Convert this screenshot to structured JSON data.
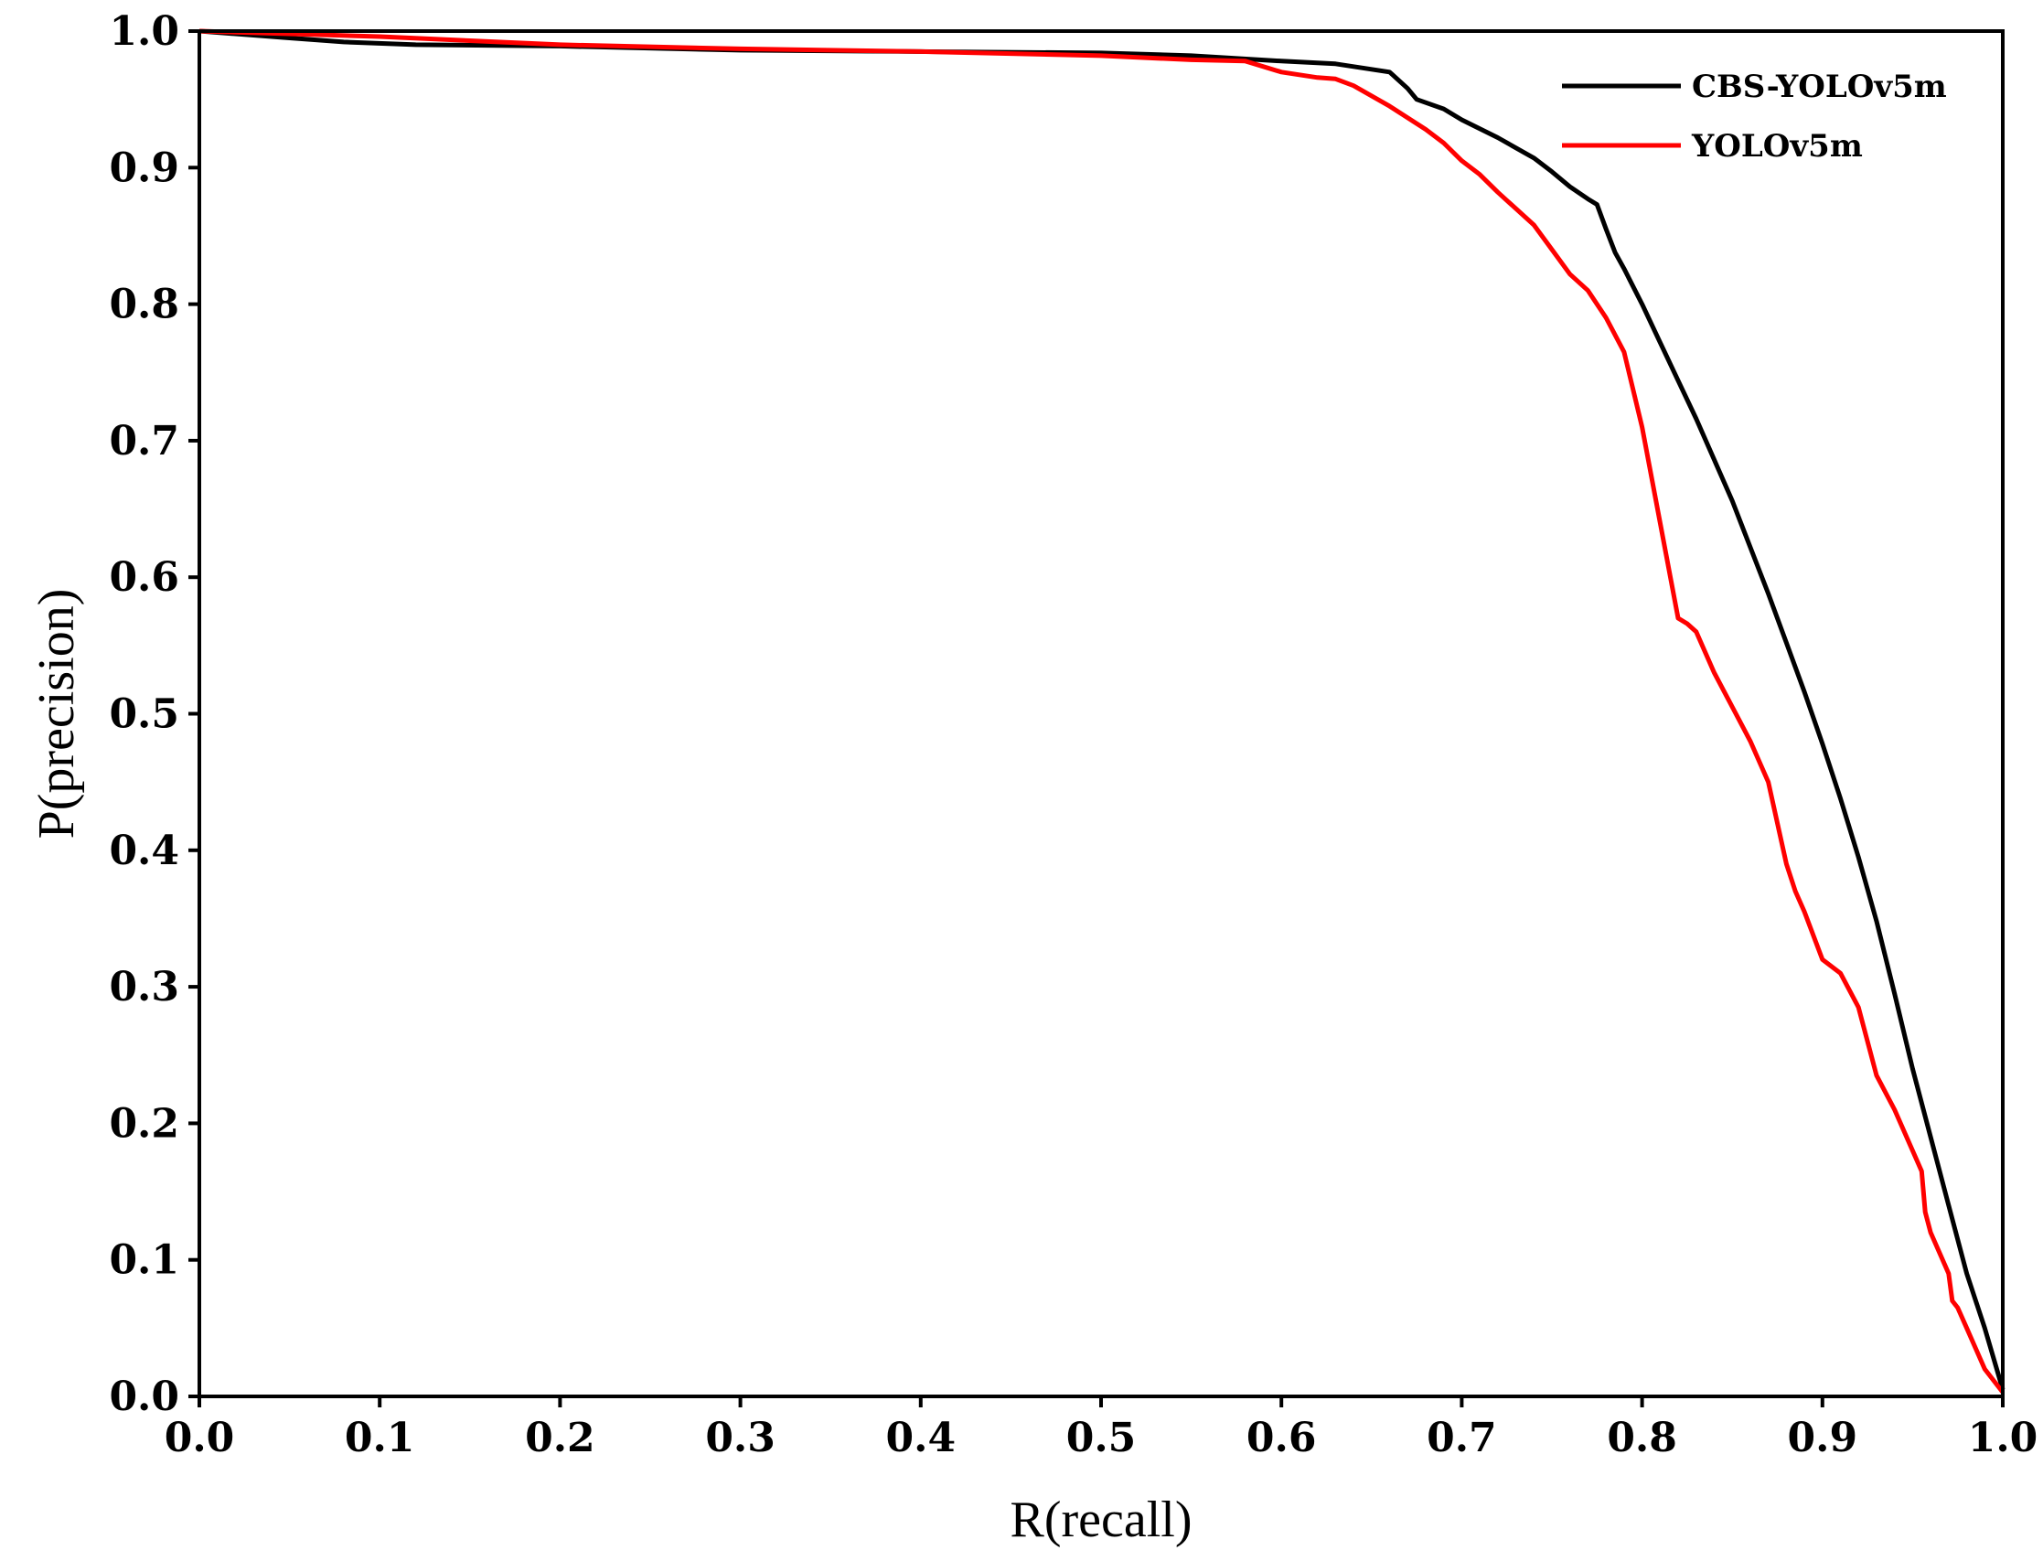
{
  "chart_data": {
    "type": "line",
    "title": "",
    "xlabel": "R(recall)",
    "ylabel": "P(precision)",
    "xlim": [
      0.0,
      1.0
    ],
    "ylim": [
      0.0,
      1.0
    ],
    "xticks": [
      "0.0",
      "0.1",
      "0.2",
      "0.3",
      "0.4",
      "0.5",
      "0.6",
      "0.7",
      "0.8",
      "0.9",
      "1.0"
    ],
    "yticks": [
      "0.0",
      "0.1",
      "0.2",
      "0.3",
      "0.4",
      "0.5",
      "0.6",
      "0.7",
      "0.8",
      "0.9",
      "1.0"
    ],
    "grid": false,
    "legend_position": "top-right",
    "series": [
      {
        "name": "CBS-YOLOv5m",
        "color": "#000000",
        "x": [
          0.0,
          0.02,
          0.03,
          0.05,
          0.08,
          0.12,
          0.2,
          0.3,
          0.4,
          0.5,
          0.55,
          0.6,
          0.63,
          0.65,
          0.66,
          0.67,
          0.675,
          0.69,
          0.7,
          0.72,
          0.74,
          0.75,
          0.76,
          0.77,
          0.775,
          0.78,
          0.785,
          0.79,
          0.8,
          0.81,
          0.82,
          0.83,
          0.84,
          0.85,
          0.86,
          0.87,
          0.88,
          0.89,
          0.9,
          0.91,
          0.92,
          0.93,
          0.94,
          0.95,
          0.96,
          0.97,
          0.98,
          0.99,
          1.0
        ],
        "y": [
          1.0,
          0.998,
          0.997,
          0.995,
          0.992,
          0.99,
          0.989,
          0.986,
          0.985,
          0.984,
          0.982,
          0.978,
          0.976,
          0.972,
          0.97,
          0.958,
          0.95,
          0.943,
          0.935,
          0.922,
          0.907,
          0.897,
          0.886,
          0.877,
          0.873,
          0.855,
          0.838,
          0.826,
          0.8,
          0.772,
          0.744,
          0.716,
          0.686,
          0.656,
          0.622,
          0.588,
          0.552,
          0.516,
          0.478,
          0.438,
          0.395,
          0.348,
          0.295,
          0.24,
          0.19,
          0.14,
          0.09,
          0.05,
          0.005
        ]
      },
      {
        "name": "YOLOv5m",
        "color": "#ff0000",
        "x": [
          0.0,
          0.05,
          0.1,
          0.15,
          0.2,
          0.3,
          0.4,
          0.5,
          0.55,
          0.58,
          0.6,
          0.62,
          0.63,
          0.64,
          0.66,
          0.68,
          0.69,
          0.7,
          0.71,
          0.72,
          0.74,
          0.75,
          0.76,
          0.77,
          0.78,
          0.79,
          0.8,
          0.81,
          0.82,
          0.825,
          0.83,
          0.84,
          0.85,
          0.86,
          0.87,
          0.875,
          0.88,
          0.885,
          0.89,
          0.9,
          0.91,
          0.92,
          0.93,
          0.94,
          0.95,
          0.955,
          0.957,
          0.96,
          0.97,
          0.972,
          0.975,
          0.98,
          0.99,
          1.0
        ],
        "y": [
          1.0,
          0.998,
          0.996,
          0.993,
          0.99,
          0.987,
          0.985,
          0.982,
          0.979,
          0.978,
          0.97,
          0.966,
          0.965,
          0.96,
          0.945,
          0.928,
          0.918,
          0.905,
          0.895,
          0.882,
          0.858,
          0.84,
          0.822,
          0.81,
          0.79,
          0.765,
          0.71,
          0.64,
          0.57,
          0.566,
          0.56,
          0.53,
          0.505,
          0.48,
          0.45,
          0.42,
          0.39,
          0.37,
          0.355,
          0.32,
          0.31,
          0.285,
          0.235,
          0.21,
          0.18,
          0.165,
          0.135,
          0.12,
          0.09,
          0.07,
          0.065,
          0.05,
          0.02,
          0.003
        ]
      }
    ]
  }
}
